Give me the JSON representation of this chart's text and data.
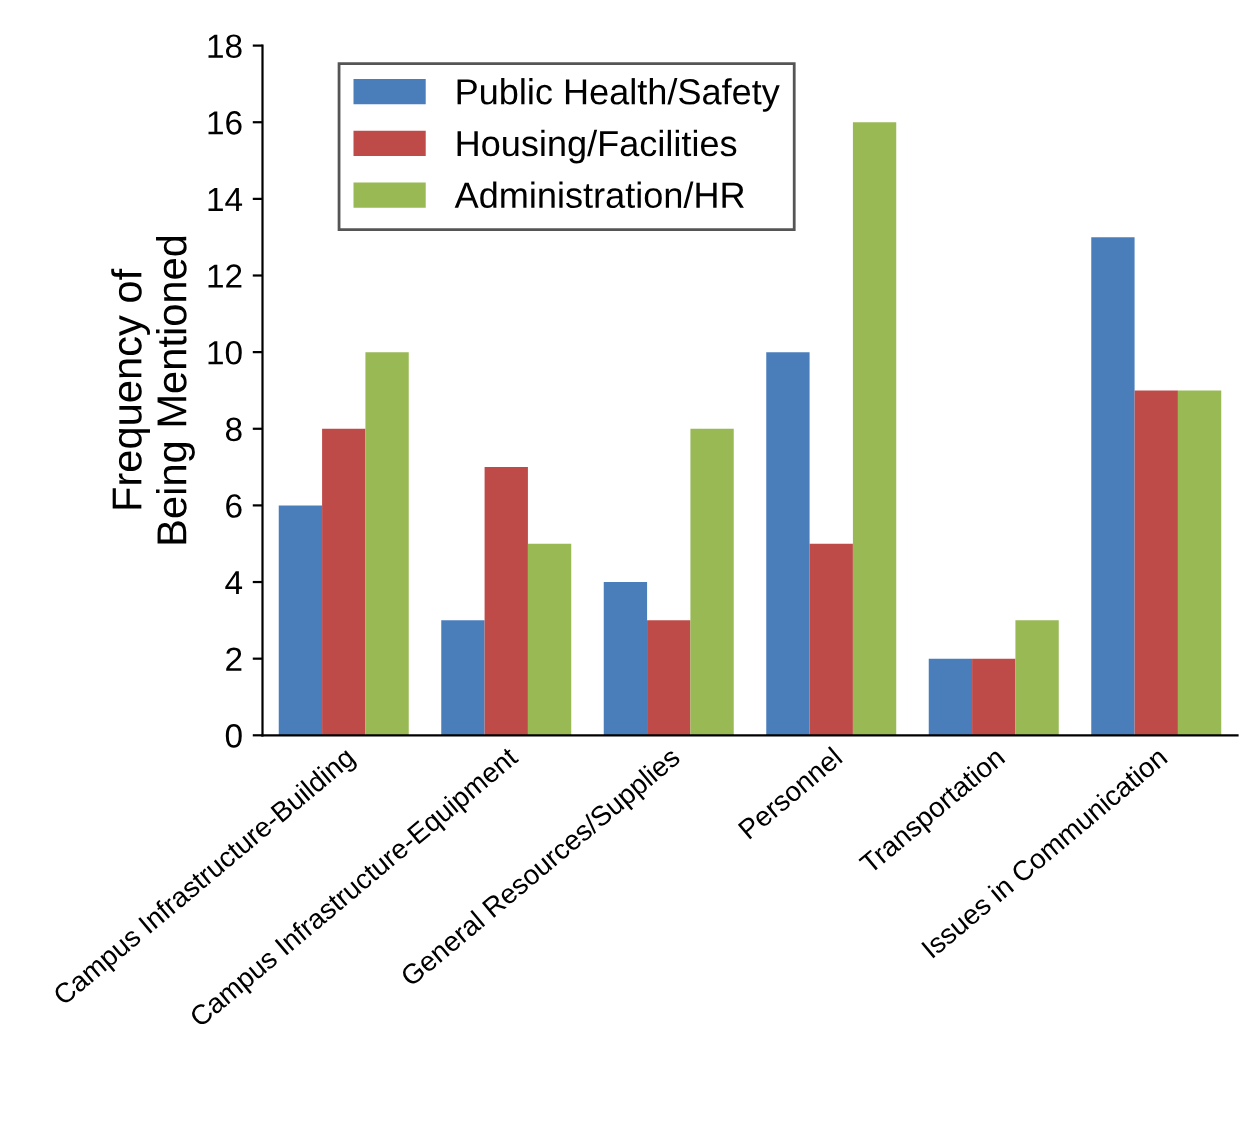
{
  "chart_data": {
    "type": "bar",
    "ylabel": "Frequency of\nBeing Mentioned",
    "categories": [
      "Campus Infrastructure-Building",
      "Campus Infrastructure-Equipment",
      "General Resources/Supplies",
      "Personnel",
      "Transportation",
      "Issues in Communication"
    ],
    "series": [
      {
        "name": "Public Health/Safety",
        "color": "#4a7ebb",
        "values": [
          6,
          3,
          4,
          10,
          2,
          13
        ]
      },
      {
        "name": "Housing/Facilities",
        "color": "#be4b48",
        "values": [
          8,
          7,
          3,
          5,
          2,
          9
        ]
      },
      {
        "name": "Administration/HR",
        "color": "#98b954",
        "values": [
          10,
          5,
          8,
          16,
          3,
          9
        ]
      }
    ],
    "ylim": [
      0,
      18
    ],
    "yticks": [
      0,
      2,
      4,
      6,
      8,
      10,
      12,
      14,
      16,
      18
    ],
    "grid": false,
    "legend": "top left"
  }
}
